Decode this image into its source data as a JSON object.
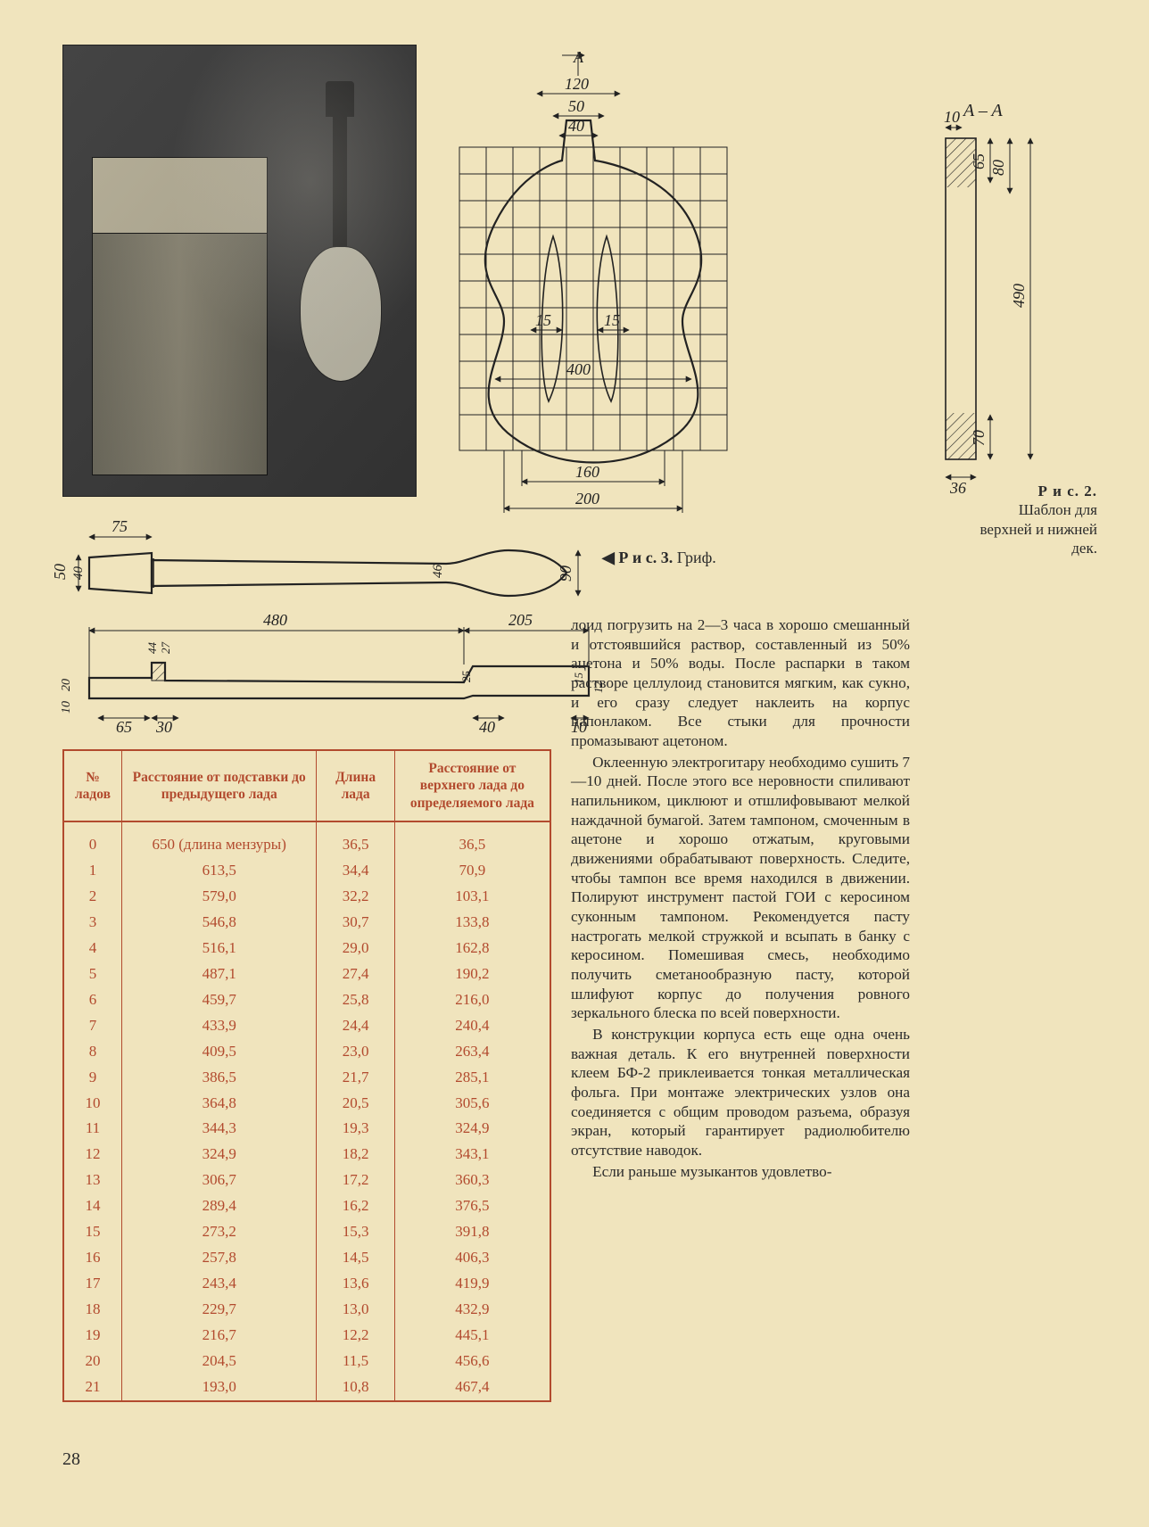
{
  "page_number": "28",
  "captions": {
    "fig2_label": "Р и с.  2.",
    "fig2_text": "Шаблон для верхней и нижней дек.",
    "fig3_label": "◀ Р и с.  3.",
    "fig3_text": "Гриф."
  },
  "fig2": {
    "dims_top": {
      "A_mark": "A",
      "w120": "120",
      "w50": "50",
      "w40": "40"
    },
    "dims_body": {
      "d15a": "15",
      "d15b": "15",
      "d400": "400",
      "d160": "160",
      "d200": "200"
    },
    "section": {
      "label": "A – A",
      "d10": "10",
      "d65": "65",
      "d80": "80",
      "d490": "490",
      "d70": "70",
      "d36": "36"
    }
  },
  "fig3": {
    "top": {
      "d75": "75",
      "d50": "50",
      "d40": "40",
      "d46": "46",
      "d90": "90"
    },
    "bottom": {
      "d480": "480",
      "d205": "205",
      "d44": "44",
      "d27": "27",
      "d20": "20",
      "d10": "10",
      "d10b": "10",
      "d65": "65",
      "d30": "30",
      "d40": "40",
      "d25": "25",
      "d15": "15",
      "d12": "12"
    }
  },
  "table": {
    "columns": [
      "№ ладов",
      "Расстояние от подставки до предыдущего лада",
      "Длина лада",
      "Расстояние от верхнего лада до определяемого лада"
    ],
    "rows": [
      [
        "0",
        "650  (длина  мензуры)",
        "36,5",
        "36,5"
      ],
      [
        "1",
        "613,5",
        "34,4",
        "70,9"
      ],
      [
        "2",
        "579,0",
        "32,2",
        "103,1"
      ],
      [
        "3",
        "546,8",
        "30,7",
        "133,8"
      ],
      [
        "4",
        "516,1",
        "29,0",
        "162,8"
      ],
      [
        "5",
        "487,1",
        "27,4",
        "190,2"
      ],
      [
        "6",
        "459,7",
        "25,8",
        "216,0"
      ],
      [
        "7",
        "433,9",
        "24,4",
        "240,4"
      ],
      [
        "8",
        "409,5",
        "23,0",
        "263,4"
      ],
      [
        "9",
        "386,5",
        "21,7",
        "285,1"
      ],
      [
        "10",
        "364,8",
        "20,5",
        "305,6"
      ],
      [
        "11",
        "344,3",
        "19,3",
        "324,9"
      ],
      [
        "12",
        "324,9",
        "18,2",
        "343,1"
      ],
      [
        "13",
        "306,7",
        "17,2",
        "360,3"
      ],
      [
        "14",
        "289,4",
        "16,2",
        "376,5"
      ],
      [
        "15",
        "273,2",
        "15,3",
        "391,8"
      ],
      [
        "16",
        "257,8",
        "14,5",
        "406,3"
      ],
      [
        "17",
        "243,4",
        "13,6",
        "419,9"
      ],
      [
        "18",
        "229,7",
        "13,0",
        "432,9"
      ],
      [
        "19",
        "216,7",
        "12,2",
        "445,1"
      ],
      [
        "20",
        "204,5",
        "11,5",
        "456,6"
      ],
      [
        "21",
        "193,0",
        "10,8",
        "467,4"
      ]
    ],
    "col_widths_pct": [
      12,
      40,
      16,
      32
    ],
    "color": "#b24a2e"
  },
  "body_text": {
    "p1": "лоид погрузить на 2—3 часа в хорошо смешанный и отстоявшийся раствор, составленный из 50% ацетона и 50% воды. После распарки в таком растворе целлулоид становится мягким, как сукно, и его сразу следует наклеить на корпус цапонлаком. Все стыки для прочности промазывают ацетоном.",
    "p2": "Оклеенную электрогитару необходимо сушить 7—10 дней. После этого все неровности спиливают напильником, циклюют и отшлифовывают мелкой наждачной бумагой. Затем тампоном, смоченным в ацетоне и хорошо отжатым, круговыми движениями обрабатывают поверхность. Следите, чтобы тампон все время находился в движении. Полируют инструмент пастой ГОИ с керосином суконным тампоном. Рекомендуется пасту настрогать мелкой стружкой и всыпать в банку с керосином. Помешивая смесь, необходимо получить сметанообразную пасту, которой шлифуют корпус до получения ровного зеркального блеска по всей поверхности.",
    "p3": "В конструкции корпуса есть еще одна очень важная деталь. К его внутренней поверхности клеем БФ-2 приклеивается тонкая металлическая фольга. При монтаже электрических узлов она соединяется с общим проводом разъема, образуя экран, который гарантирует радиолюбителю отсутствие наводок.",
    "p4": "Если раньше музыкантов удовлетво-"
  },
  "colors": {
    "paper": "#f0e4bd",
    "ink": "#2b2b2b",
    "table": "#b24a2e"
  }
}
